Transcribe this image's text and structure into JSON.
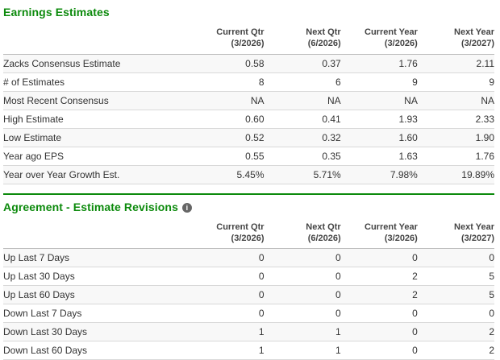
{
  "colors": {
    "accent_green": "#0c8a0c",
    "header_text": "#444444",
    "body_text": "#333333",
    "row_border": "#d9d9d9",
    "stripe": "#f8f8f8",
    "info_icon_bg": "#666666"
  },
  "icons": {
    "info_glyph": "i"
  },
  "sections": [
    {
      "title": "Earnings Estimates",
      "columns": [
        {
          "label": "Current Qtr",
          "sub": "(3/2026)"
        },
        {
          "label": "Next Qtr",
          "sub": "(6/2026)"
        },
        {
          "label": "Current Year",
          "sub": "(3/2026)"
        },
        {
          "label": "Next Year",
          "sub": "(3/2027)"
        }
      ],
      "rows": [
        {
          "label": "Zacks Consensus Estimate",
          "values": [
            "0.58",
            "0.37",
            "1.76",
            "2.11"
          ]
        },
        {
          "label": "# of Estimates",
          "values": [
            "8",
            "6",
            "9",
            "9"
          ]
        },
        {
          "label": "Most Recent Consensus",
          "values": [
            "NA",
            "NA",
            "NA",
            "NA"
          ]
        },
        {
          "label": "High Estimate",
          "values": [
            "0.60",
            "0.41",
            "1.93",
            "2.33"
          ]
        },
        {
          "label": "Low Estimate",
          "values": [
            "0.52",
            "0.32",
            "1.60",
            "1.90"
          ]
        },
        {
          "label": "Year ago EPS",
          "values": [
            "0.55",
            "0.35",
            "1.63",
            "1.76"
          ]
        },
        {
          "label": "Year over Year Growth Est.",
          "values": [
            "5.45%",
            "5.71%",
            "7.98%",
            "19.89%"
          ]
        }
      ]
    },
    {
      "title": "Agreement - Estimate Revisions",
      "columns": [
        {
          "label": "Current Qtr",
          "sub": "(3/2026)"
        },
        {
          "label": "Next Qtr",
          "sub": "(6/2026)"
        },
        {
          "label": "Current Year",
          "sub": "(3/2026)"
        },
        {
          "label": "Next Year",
          "sub": "(3/2027)"
        }
      ],
      "rows": [
        {
          "label": "Up Last 7 Days",
          "values": [
            "0",
            "0",
            "0",
            "0"
          ]
        },
        {
          "label": "Up Last 30 Days",
          "values": [
            "0",
            "0",
            "2",
            "5"
          ]
        },
        {
          "label": "Up Last 60 Days",
          "values": [
            "0",
            "0",
            "2",
            "5"
          ]
        },
        {
          "label": "Down Last 7 Days",
          "values": [
            "0",
            "0",
            "0",
            "0"
          ]
        },
        {
          "label": "Down Last 30 Days",
          "values": [
            "1",
            "1",
            "0",
            "2"
          ]
        },
        {
          "label": "Down Last 60 Days",
          "values": [
            "1",
            "1",
            "0",
            "2"
          ]
        }
      ]
    }
  ]
}
